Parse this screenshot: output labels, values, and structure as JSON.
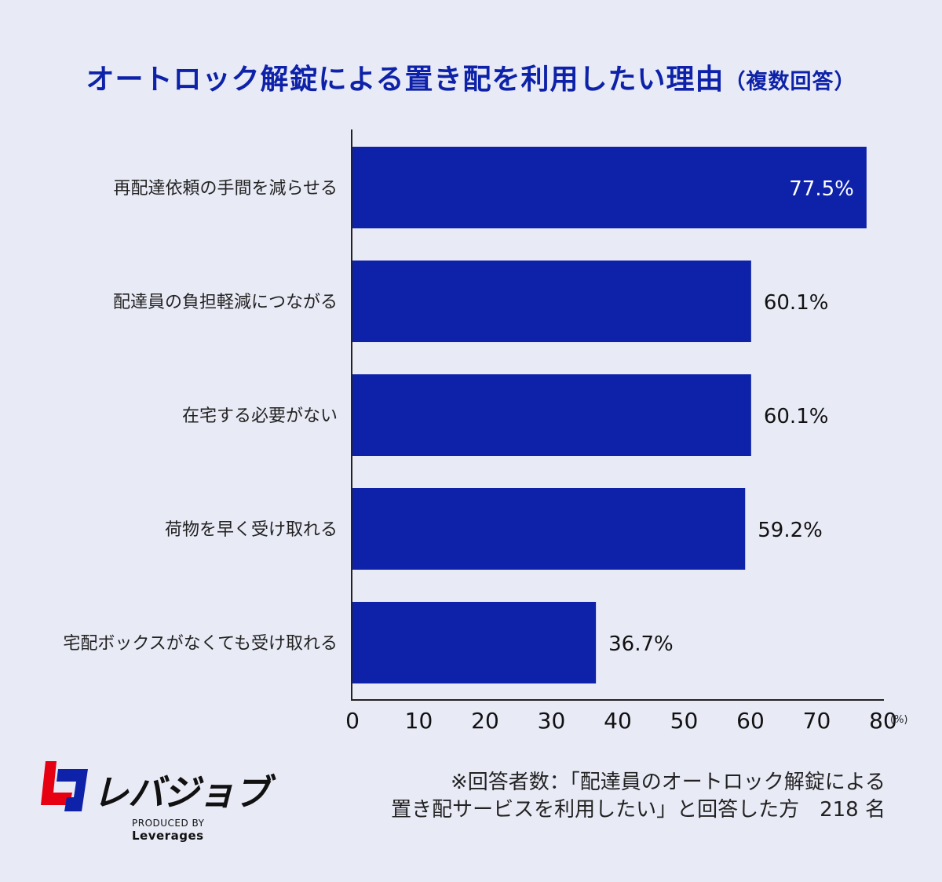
{
  "title": "オートロック解錠による置き配を利用したい理由",
  "subtitle": "（複数回答）",
  "chart_data": {
    "type": "bar",
    "orientation": "horizontal",
    "categories": [
      "再配達依頼の手間を減らせる",
      "配達員の負担軽減につながる",
      "在宅する必要がない",
      "荷物を早く受け取れる",
      "宅配ボックスがなくても受け取れる"
    ],
    "values": [
      77.5,
      60.1,
      60.1,
      59.2,
      36.7
    ],
    "value_labels": [
      "77.5%",
      "60.1%",
      "60.1%",
      "59.2%",
      "36.7%"
    ],
    "xlim": [
      0,
      80
    ],
    "ticks": [
      "0",
      "10",
      "20",
      "30",
      "40",
      "50",
      "60",
      "70",
      "80"
    ],
    "tick_values": [
      0,
      10,
      20,
      30,
      40,
      50,
      60,
      70,
      80
    ],
    "unit": "(%)",
    "bar_color": "#0d22a8",
    "grid": false
  },
  "logo": {
    "text": "レバジョブ",
    "produced_by": "PRODUCED BY",
    "company": "Leverages",
    "colors": [
      "#e60012",
      "#0d22a8"
    ]
  },
  "footnote": {
    "line1": "※回答者数：「配達員のオートロック解錠による",
    "line2": "置き配サービスを利用したい」と回答した方　218 名"
  }
}
